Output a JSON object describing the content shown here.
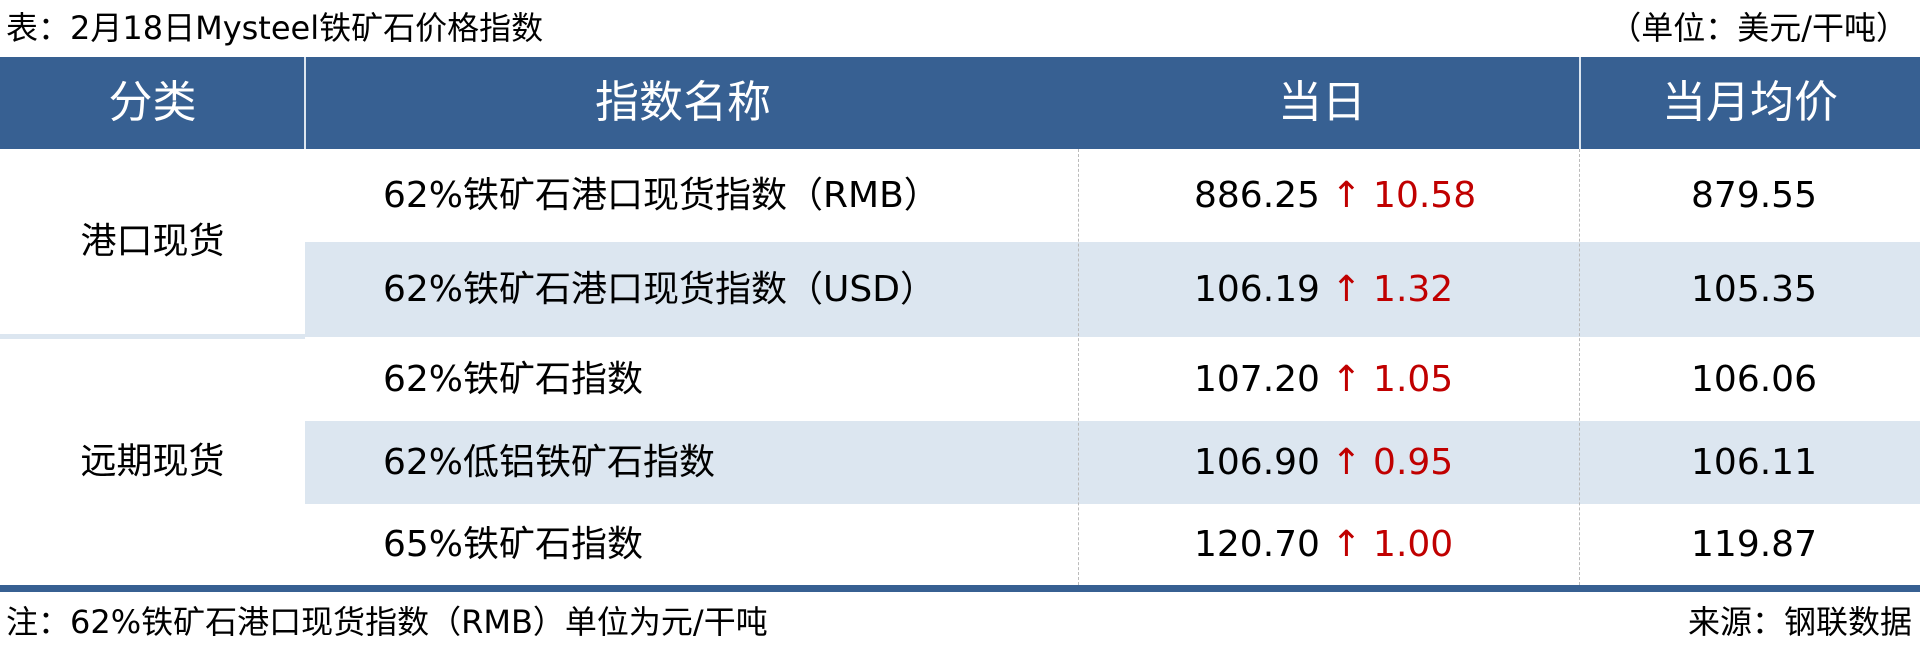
{
  "title": "表：2月18日Mysteel铁矿石价格指数",
  "unit": "（单位：美元/干吨）",
  "headers": [
    "分类",
    "指数名称",
    "当日",
    "当月均价"
  ],
  "groups": [
    "港口现货",
    "远期现货"
  ],
  "rows": [
    {
      "name": "62%铁矿石港口现货指数（RMB）",
      "today": "886.25",
      "arrow": "↑",
      "change": "10.58",
      "avg": "879.55"
    },
    {
      "name": "62%铁矿石港口现货指数（USD）",
      "today": "106.19",
      "arrow": "↑",
      "change": "1.32",
      "avg": "105.35"
    },
    {
      "name": "62%铁矿石指数",
      "today": "107.20",
      "arrow": "↑",
      "change": "1.05",
      "avg": "106.06"
    },
    {
      "name": "62%低铝铁矿石指数",
      "today": "106.90",
      "arrow": "↑",
      "change": "0.95",
      "avg": "106.11"
    },
    {
      "name": "65%铁矿石指数",
      "today": "120.70",
      "arrow": "↑",
      "change": "1.00",
      "avg": "119.87"
    }
  ],
  "note": "注：62%铁矿石港口现货指数（RMB）单位为元/干吨",
  "source": "来源：钢联数据",
  "colors": {
    "header": "#376092",
    "alt_row": "#dce6f0",
    "up": "#c00000"
  }
}
